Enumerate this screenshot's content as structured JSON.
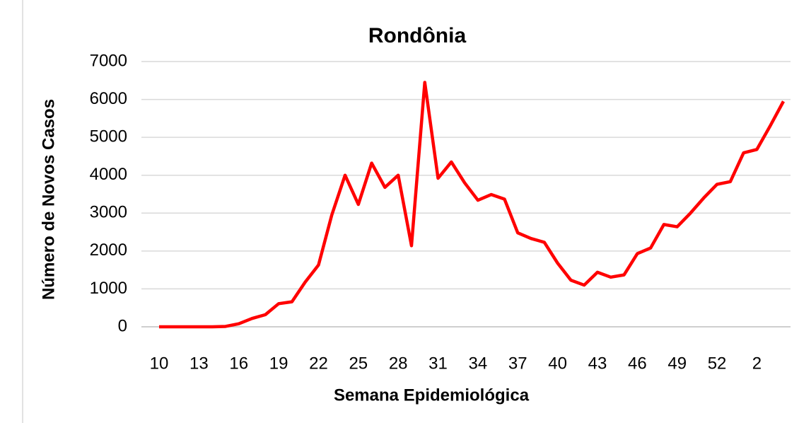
{
  "chart_data": {
    "type": "line",
    "title": "Rondônia",
    "x_label": "Semana Epidemiológica",
    "y_label": "Número de Novos Casos",
    "categories": [
      "10",
      null,
      null,
      "13",
      null,
      null,
      "16",
      null,
      null,
      "19",
      null,
      null,
      "22",
      null,
      null,
      "25",
      null,
      null,
      "28",
      null,
      null,
      "31",
      null,
      null,
      "34",
      null,
      null,
      "37",
      null,
      null,
      "40",
      null,
      null,
      "43",
      null,
      null,
      "46",
      null,
      null,
      "49",
      null,
      null,
      "52",
      null,
      null,
      "2",
      null,
      null
    ],
    "series": [
      {
        "name": "Rondônia",
        "color": "#ff0000",
        "values": [
          0,
          0,
          0,
          0,
          0,
          10,
          80,
          220,
          320,
          610,
          660,
          1180,
          1630,
          2950,
          4000,
          3230,
          4320,
          3680,
          4000,
          2140,
          6450,
          3920,
          4350,
          3800,
          3340,
          3490,
          3370,
          2480,
          2330,
          2230,
          1680,
          1230,
          1100,
          1440,
          1310,
          1370,
          1930,
          2080,
          2700,
          2640,
          3000,
          3400,
          3760,
          3830,
          4590,
          4680,
          5300,
          5950
        ]
      }
    ],
    "ylim": [
      0,
      7000
    ],
    "yticks": [
      0,
      1000,
      2000,
      3000,
      4000,
      5000,
      6000,
      7000
    ],
    "grid": true
  }
}
